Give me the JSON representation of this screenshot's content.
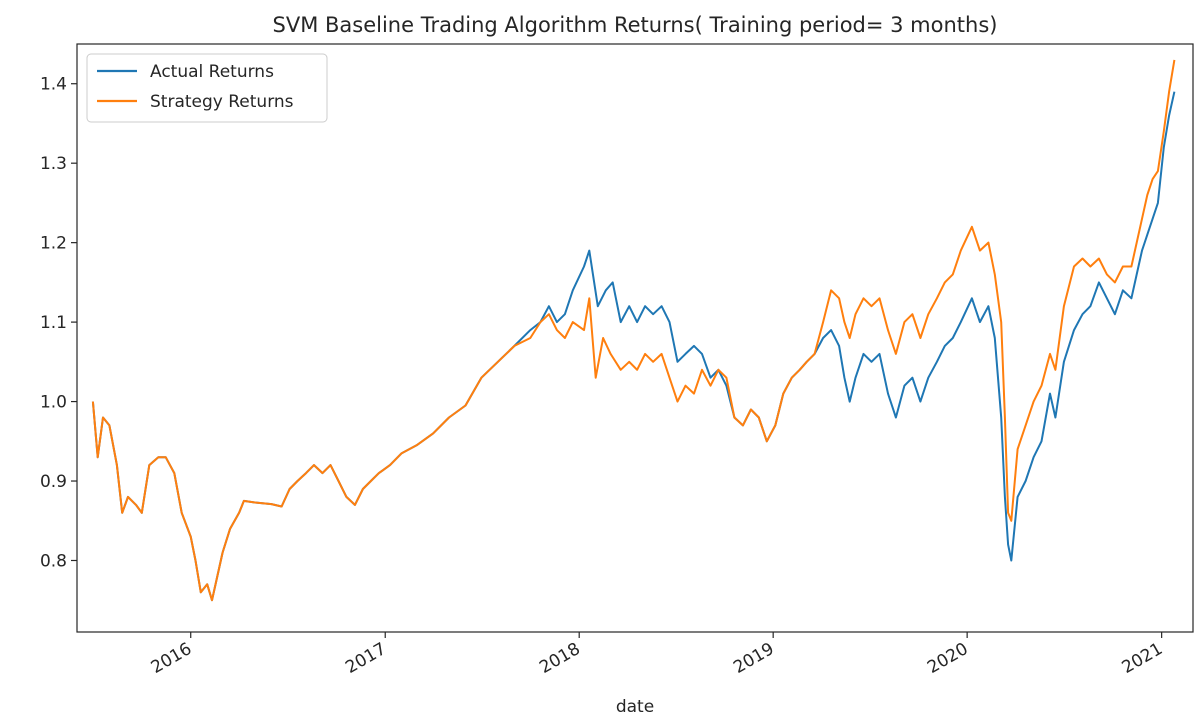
{
  "chart_data": {
    "type": "line",
    "title": "SVM Baseline Trading Algorithm Returns( Training period= 3 months)",
    "xlabel": "date",
    "ylabel": "",
    "xlim": [
      "2015-06-01",
      "2021-03-01"
    ],
    "ylim": [
      0.71,
      1.45
    ],
    "x_ticks": [
      "2016",
      "2017",
      "2018",
      "2019",
      "2020",
      "2021"
    ],
    "y_ticks": [
      "0.8",
      "0.9",
      "1.0",
      "1.1",
      "1.2",
      "1.3",
      "1.4"
    ],
    "grid": false,
    "legend_position": "upper-left",
    "series": [
      {
        "name": "Actual Returns",
        "color": "#1f77b4",
        "points": [
          [
            "2015-07-01",
            1.0
          ],
          [
            "2015-07-10",
            0.93
          ],
          [
            "2015-07-20",
            0.98
          ],
          [
            "2015-08-01",
            0.97
          ],
          [
            "2015-08-15",
            0.92
          ],
          [
            "2015-08-25",
            0.86
          ],
          [
            "2015-09-05",
            0.88
          ],
          [
            "2015-09-20",
            0.87
          ],
          [
            "2015-10-01",
            0.86
          ],
          [
            "2015-10-15",
            0.92
          ],
          [
            "2015-11-01",
            0.93
          ],
          [
            "2015-11-15",
            0.93
          ],
          [
            "2015-12-01",
            0.91
          ],
          [
            "2015-12-15",
            0.86
          ],
          [
            "2016-01-01",
            0.83
          ],
          [
            "2016-01-10",
            0.8
          ],
          [
            "2016-01-20",
            0.76
          ],
          [
            "2016-02-01",
            0.77
          ],
          [
            "2016-02-10",
            0.75
          ],
          [
            "2016-02-20",
            0.78
          ],
          [
            "2016-03-01",
            0.81
          ],
          [
            "2016-03-15",
            0.84
          ],
          [
            "2016-04-01",
            0.86
          ],
          [
            "2016-04-10",
            0.875
          ],
          [
            "2016-05-01",
            0.873
          ],
          [
            "2016-06-01",
            0.871
          ],
          [
            "2016-06-20",
            0.868
          ],
          [
            "2016-07-05",
            0.89
          ],
          [
            "2016-07-20",
            0.9
          ],
          [
            "2016-08-05",
            0.91
          ],
          [
            "2016-08-20",
            0.92
          ],
          [
            "2016-09-05",
            0.91
          ],
          [
            "2016-09-20",
            0.92
          ],
          [
            "2016-10-05",
            0.9
          ],
          [
            "2016-10-20",
            0.88
          ],
          [
            "2016-11-05",
            0.87
          ],
          [
            "2016-11-20",
            0.89
          ],
          [
            "2016-12-05",
            0.9
          ],
          [
            "2016-12-20",
            0.91
          ],
          [
            "2017-01-10",
            0.92
          ],
          [
            "2017-02-01",
            0.935
          ],
          [
            "2017-03-01",
            0.945
          ],
          [
            "2017-04-01",
            0.96
          ],
          [
            "2017-05-01",
            0.98
          ],
          [
            "2017-06-01",
            0.995
          ],
          [
            "2017-07-01",
            1.03
          ],
          [
            "2017-08-01",
            1.05
          ],
          [
            "2017-09-01",
            1.07
          ],
          [
            "2017-10-01",
            1.09
          ],
          [
            "2017-10-20",
            1.1
          ],
          [
            "2017-11-05",
            1.12
          ],
          [
            "2017-11-20",
            1.1
          ],
          [
            "2017-12-05",
            1.11
          ],
          [
            "2017-12-20",
            1.14
          ],
          [
            "2018-01-10",
            1.17
          ],
          [
            "2018-01-20",
            1.19
          ],
          [
            "2018-02-05",
            1.12
          ],
          [
            "2018-02-20",
            1.14
          ],
          [
            "2018-03-05",
            1.15
          ],
          [
            "2018-03-20",
            1.1
          ],
          [
            "2018-04-05",
            1.12
          ],
          [
            "2018-04-20",
            1.1
          ],
          [
            "2018-05-05",
            1.12
          ],
          [
            "2018-05-20",
            1.11
          ],
          [
            "2018-06-05",
            1.12
          ],
          [
            "2018-06-20",
            1.1
          ],
          [
            "2018-07-05",
            1.05
          ],
          [
            "2018-07-20",
            1.06
          ],
          [
            "2018-08-05",
            1.07
          ],
          [
            "2018-08-20",
            1.06
          ],
          [
            "2018-09-05",
            1.03
          ],
          [
            "2018-09-20",
            1.04
          ],
          [
            "2018-10-05",
            1.02
          ],
          [
            "2018-10-20",
            0.98
          ],
          [
            "2018-11-05",
            0.97
          ],
          [
            "2018-11-20",
            0.99
          ],
          [
            "2018-12-05",
            0.98
          ],
          [
            "2018-12-20",
            0.95
          ],
          [
            "2019-01-05",
            0.97
          ],
          [
            "2019-01-20",
            1.01
          ],
          [
            "2019-02-05",
            1.03
          ],
          [
            "2019-02-20",
            1.04
          ],
          [
            "2019-03-05",
            1.05
          ],
          [
            "2019-03-20",
            1.06
          ],
          [
            "2019-04-05",
            1.08
          ],
          [
            "2019-04-20",
            1.09
          ],
          [
            "2019-05-05",
            1.07
          ],
          [
            "2019-05-15",
            1.03
          ],
          [
            "2019-05-25",
            1.0
          ],
          [
            "2019-06-05",
            1.03
          ],
          [
            "2019-06-20",
            1.06
          ],
          [
            "2019-07-05",
            1.05
          ],
          [
            "2019-07-20",
            1.06
          ],
          [
            "2019-08-05",
            1.01
          ],
          [
            "2019-08-20",
            0.98
          ],
          [
            "2019-09-05",
            1.02
          ],
          [
            "2019-09-20",
            1.03
          ],
          [
            "2019-10-05",
            1.0
          ],
          [
            "2019-10-20",
            1.03
          ],
          [
            "2019-11-05",
            1.05
          ],
          [
            "2019-11-20",
            1.07
          ],
          [
            "2019-12-05",
            1.08
          ],
          [
            "2019-12-20",
            1.1
          ],
          [
            "2020-01-10",
            1.13
          ],
          [
            "2020-01-25",
            1.1
          ],
          [
            "2020-02-10",
            1.12
          ],
          [
            "2020-02-22",
            1.08
          ],
          [
            "2020-03-05",
            0.98
          ],
          [
            "2020-03-12",
            0.88
          ],
          [
            "2020-03-18",
            0.82
          ],
          [
            "2020-03-24",
            0.8
          ],
          [
            "2020-04-05",
            0.88
          ],
          [
            "2020-04-20",
            0.9
          ],
          [
            "2020-05-05",
            0.93
          ],
          [
            "2020-05-20",
            0.95
          ],
          [
            "2020-06-05",
            1.01
          ],
          [
            "2020-06-15",
            0.98
          ],
          [
            "2020-07-01",
            1.05
          ],
          [
            "2020-07-20",
            1.09
          ],
          [
            "2020-08-05",
            1.11
          ],
          [
            "2020-08-20",
            1.12
          ],
          [
            "2020-09-05",
            1.15
          ],
          [
            "2020-09-20",
            1.13
          ],
          [
            "2020-10-05",
            1.11
          ],
          [
            "2020-10-20",
            1.14
          ],
          [
            "2020-11-05",
            1.13
          ],
          [
            "2020-11-15",
            1.16
          ],
          [
            "2020-11-25",
            1.19
          ],
          [
            "2020-12-05",
            1.21
          ],
          [
            "2020-12-15",
            1.23
          ],
          [
            "2020-12-25",
            1.25
          ],
          [
            "2021-01-05",
            1.32
          ],
          [
            "2021-01-15",
            1.36
          ],
          [
            "2021-01-25",
            1.39
          ]
        ]
      },
      {
        "name": "Strategy Returns",
        "color": "#ff7f0e",
        "points": [
          [
            "2015-07-01",
            1.0
          ],
          [
            "2015-07-10",
            0.93
          ],
          [
            "2015-07-20",
            0.98
          ],
          [
            "2015-08-01",
            0.97
          ],
          [
            "2015-08-15",
            0.92
          ],
          [
            "2015-08-25",
            0.86
          ],
          [
            "2015-09-05",
            0.88
          ],
          [
            "2015-09-20",
            0.87
          ],
          [
            "2015-10-01",
            0.86
          ],
          [
            "2015-10-15",
            0.92
          ],
          [
            "2015-11-01",
            0.93
          ],
          [
            "2015-11-15",
            0.93
          ],
          [
            "2015-12-01",
            0.91
          ],
          [
            "2015-12-15",
            0.86
          ],
          [
            "2016-01-01",
            0.83
          ],
          [
            "2016-01-10",
            0.8
          ],
          [
            "2016-01-20",
            0.76
          ],
          [
            "2016-02-01",
            0.77
          ],
          [
            "2016-02-10",
            0.75
          ],
          [
            "2016-02-20",
            0.78
          ],
          [
            "2016-03-01",
            0.81
          ],
          [
            "2016-03-15",
            0.84
          ],
          [
            "2016-04-01",
            0.86
          ],
          [
            "2016-04-10",
            0.875
          ],
          [
            "2016-05-01",
            0.873
          ],
          [
            "2016-06-01",
            0.871
          ],
          [
            "2016-06-20",
            0.868
          ],
          [
            "2016-07-05",
            0.89
          ],
          [
            "2016-07-20",
            0.9
          ],
          [
            "2016-08-05",
            0.91
          ],
          [
            "2016-08-20",
            0.92
          ],
          [
            "2016-09-05",
            0.91
          ],
          [
            "2016-09-20",
            0.92
          ],
          [
            "2016-10-05",
            0.9
          ],
          [
            "2016-10-20",
            0.88
          ],
          [
            "2016-11-05",
            0.87
          ],
          [
            "2016-11-20",
            0.89
          ],
          [
            "2016-12-05",
            0.9
          ],
          [
            "2016-12-20",
            0.91
          ],
          [
            "2017-01-10",
            0.92
          ],
          [
            "2017-02-01",
            0.935
          ],
          [
            "2017-03-01",
            0.945
          ],
          [
            "2017-04-01",
            0.96
          ],
          [
            "2017-05-01",
            0.98
          ],
          [
            "2017-06-01",
            0.995
          ],
          [
            "2017-07-01",
            1.03
          ],
          [
            "2017-08-01",
            1.05
          ],
          [
            "2017-09-01",
            1.07
          ],
          [
            "2017-10-01",
            1.08
          ],
          [
            "2017-10-20",
            1.1
          ],
          [
            "2017-11-05",
            1.11
          ],
          [
            "2017-11-20",
            1.09
          ],
          [
            "2017-12-05",
            1.08
          ],
          [
            "2017-12-20",
            1.1
          ],
          [
            "2018-01-10",
            1.09
          ],
          [
            "2018-01-20",
            1.13
          ],
          [
            "2018-02-01",
            1.03
          ],
          [
            "2018-02-15",
            1.08
          ],
          [
            "2018-03-01",
            1.06
          ],
          [
            "2018-03-20",
            1.04
          ],
          [
            "2018-04-05",
            1.05
          ],
          [
            "2018-04-20",
            1.04
          ],
          [
            "2018-05-05",
            1.06
          ],
          [
            "2018-05-20",
            1.05
          ],
          [
            "2018-06-05",
            1.06
          ],
          [
            "2018-06-20",
            1.03
          ],
          [
            "2018-07-05",
            1.0
          ],
          [
            "2018-07-20",
            1.02
          ],
          [
            "2018-08-05",
            1.01
          ],
          [
            "2018-08-20",
            1.04
          ],
          [
            "2018-09-05",
            1.02
          ],
          [
            "2018-09-20",
            1.04
          ],
          [
            "2018-10-05",
            1.03
          ],
          [
            "2018-10-20",
            0.98
          ],
          [
            "2018-11-05",
            0.97
          ],
          [
            "2018-11-20",
            0.99
          ],
          [
            "2018-12-05",
            0.98
          ],
          [
            "2018-12-20",
            0.95
          ],
          [
            "2019-01-05",
            0.97
          ],
          [
            "2019-01-20",
            1.01
          ],
          [
            "2019-02-05",
            1.03
          ],
          [
            "2019-02-20",
            1.04
          ],
          [
            "2019-03-05",
            1.05
          ],
          [
            "2019-03-20",
            1.06
          ],
          [
            "2019-04-05",
            1.1
          ],
          [
            "2019-04-20",
            1.14
          ],
          [
            "2019-05-05",
            1.13
          ],
          [
            "2019-05-15",
            1.1
          ],
          [
            "2019-05-25",
            1.08
          ],
          [
            "2019-06-05",
            1.11
          ],
          [
            "2019-06-20",
            1.13
          ],
          [
            "2019-07-05",
            1.12
          ],
          [
            "2019-07-20",
            1.13
          ],
          [
            "2019-08-05",
            1.09
          ],
          [
            "2019-08-20",
            1.06
          ],
          [
            "2019-09-05",
            1.1
          ],
          [
            "2019-09-20",
            1.11
          ],
          [
            "2019-10-05",
            1.08
          ],
          [
            "2019-10-20",
            1.11
          ],
          [
            "2019-11-05",
            1.13
          ],
          [
            "2019-11-20",
            1.15
          ],
          [
            "2019-12-05",
            1.16
          ],
          [
            "2019-12-20",
            1.19
          ],
          [
            "2020-01-10",
            1.22
          ],
          [
            "2020-01-25",
            1.19
          ],
          [
            "2020-02-10",
            1.2
          ],
          [
            "2020-02-22",
            1.16
          ],
          [
            "2020-03-05",
            1.1
          ],
          [
            "2020-03-12",
            0.98
          ],
          [
            "2020-03-18",
            0.86
          ],
          [
            "2020-03-24",
            0.85
          ],
          [
            "2020-04-05",
            0.94
          ],
          [
            "2020-04-20",
            0.97
          ],
          [
            "2020-05-05",
            1.0
          ],
          [
            "2020-05-20",
            1.02
          ],
          [
            "2020-06-05",
            1.06
          ],
          [
            "2020-06-15",
            1.04
          ],
          [
            "2020-07-01",
            1.12
          ],
          [
            "2020-07-20",
            1.17
          ],
          [
            "2020-08-05",
            1.18
          ],
          [
            "2020-08-20",
            1.17
          ],
          [
            "2020-09-05",
            1.18
          ],
          [
            "2020-09-20",
            1.16
          ],
          [
            "2020-10-05",
            1.15
          ],
          [
            "2020-10-20",
            1.17
          ],
          [
            "2020-11-05",
            1.17
          ],
          [
            "2020-11-15",
            1.2
          ],
          [
            "2020-11-25",
            1.23
          ],
          [
            "2020-12-05",
            1.26
          ],
          [
            "2020-12-15",
            1.28
          ],
          [
            "2020-12-25",
            1.29
          ],
          [
            "2021-01-05",
            1.34
          ],
          [
            "2021-01-15",
            1.39
          ],
          [
            "2021-01-25",
            1.43
          ]
        ]
      }
    ]
  }
}
